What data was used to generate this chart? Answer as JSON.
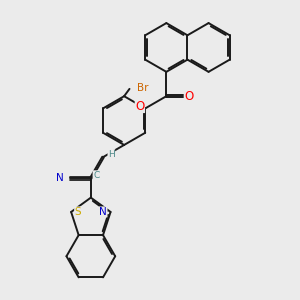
{
  "bg_color": "#ebebeb",
  "line_color": "#1a1a1a",
  "bond_lw": 1.4,
  "atom_colors": {
    "O": "#ff0000",
    "N": "#0000cc",
    "S": "#ccaa00",
    "Br": "#cc6600",
    "C": "#4a8888",
    "H": "#4a8888"
  },
  "font_size": 7.5,
  "fig_size": [
    3.0,
    3.0
  ],
  "dpi": 100
}
